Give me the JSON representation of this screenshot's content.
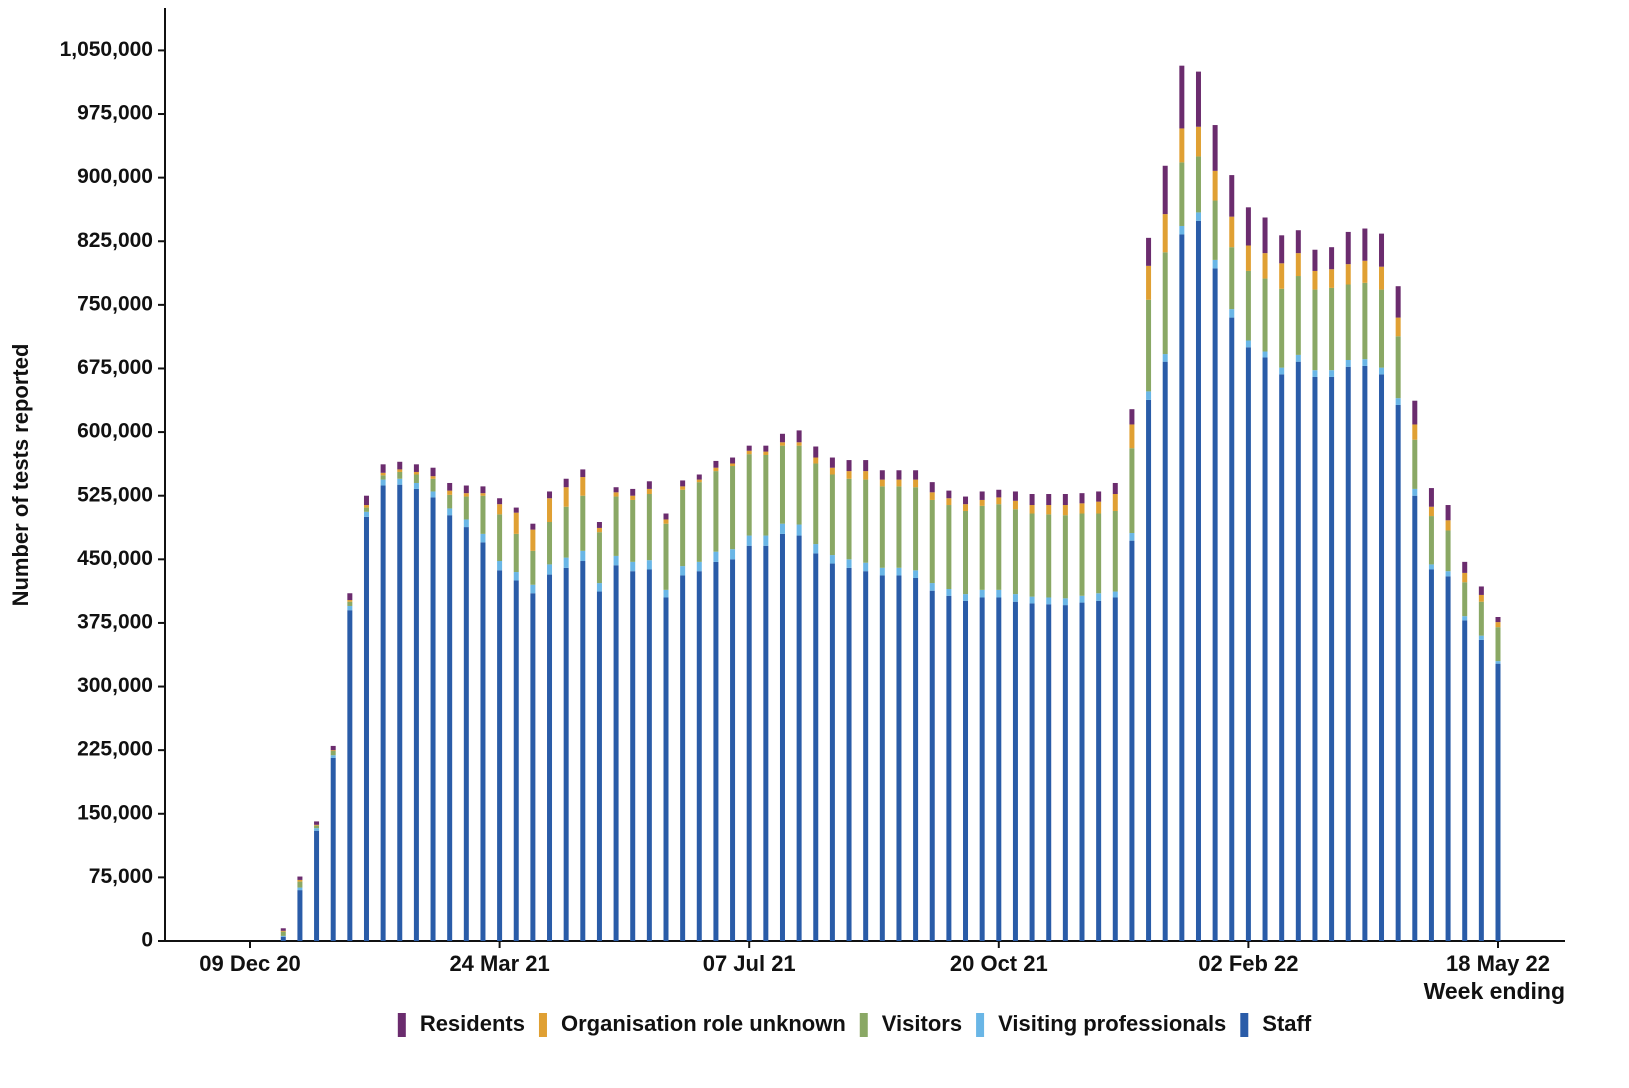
{
  "chart_data": {
    "type": "stacked_bar",
    "y_label": "Number of tests reported",
    "x_label": "Week ending",
    "categories": [
      "09 Dec 20",
      null,
      null,
      null,
      null,
      null,
      null,
      null,
      null,
      null,
      null,
      null,
      null,
      null,
      null,
      "24 Mar 21",
      null,
      null,
      null,
      null,
      null,
      null,
      null,
      null,
      null,
      null,
      null,
      null,
      null,
      null,
      "07 Jul 21",
      null,
      null,
      null,
      null,
      null,
      null,
      null,
      null,
      null,
      null,
      null,
      null,
      null,
      null,
      "20 Oct 21",
      null,
      null,
      null,
      null,
      null,
      null,
      null,
      null,
      null,
      null,
      null,
      null,
      null,
      null,
      "02 Feb 22",
      null,
      null,
      null,
      null,
      null,
      null,
      null,
      null,
      null,
      null,
      null,
      null,
      null,
      null,
      "18 May 22"
    ],
    "ylim": [
      0,
      1100000
    ],
    "yticks": [
      0,
      {
        "value": 75000,
        "label": "75,000"
      },
      {
        "value": 150000,
        "label": "150,000"
      },
      {
        "value": 225000,
        "label": "225,000"
      },
      {
        "value": 300000,
        "label": "300,000"
      },
      {
        "value": 375000,
        "label": "375,000"
      },
      {
        "value": 450000,
        "label": "450,000"
      },
      {
        "value": 525000,
        "label": "525,000"
      },
      {
        "value": 600000,
        "label": "600,000"
      },
      {
        "value": 675000,
        "label": "675,000"
      },
      {
        "value": 750000,
        "label": "750,000"
      },
      {
        "value": 825000,
        "label": "825,000"
      },
      {
        "value": 900000,
        "label": "900,000"
      },
      {
        "value": 975000,
        "label": "975,000"
      },
      {
        "value": 1050000,
        "label": "1,050,000"
      }
    ],
    "series": [
      {
        "name": "Staff",
        "color": "#2a5ca8",
        "values": [
          0,
          0,
          5000,
          60000,
          130000,
          216000,
          390000,
          500000,
          537000,
          538000,
          533000,
          523000,
          502000,
          488000,
          470000,
          437000,
          425000,
          410000,
          432000,
          440000,
          448000,
          412000,
          443000,
          436000,
          438000,
          405000,
          431000,
          436000,
          447000,
          450000,
          466000,
          466000,
          480000,
          478000,
          457000,
          445000,
          440000,
          436000,
          431000,
          431000,
          428000,
          413000,
          407000,
          401000,
          405000,
          405000,
          400000,
          398000,
          397000,
          396000,
          399000,
          401000,
          405000,
          472000,
          638000,
          683000,
          833000,
          849000,
          793000,
          735000,
          700000,
          688000,
          668000,
          683000,
          665000,
          665000,
          677000,
          678000,
          668000,
          632000,
          525000,
          438000,
          430000,
          378000,
          355000,
          327000
        ]
      },
      {
        "name": "Visiting professionals",
        "color": "#6ab6e6",
        "values": [
          0,
          0,
          1000,
          3000,
          3000,
          3000,
          5000,
          6000,
          7000,
          7000,
          7000,
          7000,
          8000,
          9000,
          10000,
          11000,
          10000,
          10000,
          12000,
          12000,
          12000,
          10000,
          11000,
          11000,
          11000,
          9000,
          11000,
          11000,
          12000,
          12000,
          12000,
          12000,
          12000,
          13000,
          11000,
          10000,
          10000,
          10000,
          9000,
          9000,
          9000,
          9000,
          8000,
          8000,
          9000,
          9000,
          9000,
          8000,
          8000,
          8000,
          8000,
          9000,
          7000,
          9000,
          10000,
          9000,
          10000,
          10000,
          10000,
          10000,
          8000,
          7000,
          8000,
          8000,
          8000,
          8000,
          8000,
          8000,
          8000,
          8000,
          8000,
          6000,
          6000,
          5000,
          5000,
          3000
        ]
      },
      {
        "name": "Visitors",
        "color": "#8aa865",
        "values": [
          0,
          0,
          5000,
          7000,
          3000,
          5000,
          5000,
          5000,
          5000,
          8000,
          10000,
          15000,
          16000,
          27000,
          45000,
          55000,
          45000,
          40000,
          50000,
          60000,
          65000,
          60000,
          70000,
          73000,
          78000,
          78000,
          90000,
          94000,
          95000,
          98000,
          96000,
          95000,
          92000,
          93000,
          95000,
          95000,
          95000,
          98000,
          96000,
          96000,
          98000,
          98000,
          99000,
          98000,
          99000,
          101000,
          100000,
          98000,
          98000,
          98000,
          97000,
          94000,
          95000,
          100000,
          108000,
          120000,
          75000,
          66000,
          70000,
          73000,
          82000,
          86000,
          93000,
          93000,
          95000,
          97000,
          89000,
          90000,
          92000,
          73000,
          58000,
          57000,
          48000,
          40000,
          40000,
          40000
        ]
      },
      {
        "name": "Organisation role unknown",
        "color": "#e0a033",
        "values": [
          0,
          0,
          1000,
          2000,
          1000,
          1000,
          2000,
          3000,
          3000,
          3000,
          3000,
          3000,
          5000,
          4000,
          3000,
          12000,
          25000,
          25000,
          28000,
          23000,
          22000,
          5000,
          5000,
          5000,
          6000,
          5000,
          4000,
          3000,
          4000,
          3000,
          4000,
          4000,
          4000,
          4000,
          7000,
          8000,
          9000,
          10000,
          8000,
          8000,
          9000,
          9000,
          8000,
          8000,
          7000,
          8000,
          10000,
          10000,
          11000,
          12000,
          12000,
          14000,
          20000,
          28000,
          40000,
          45000,
          40000,
          35000,
          35000,
          36000,
          30000,
          30000,
          30000,
          27000,
          22000,
          22000,
          24000,
          26000,
          27000,
          22000,
          18000,
          11000,
          12000,
          11000,
          8000,
          6000
        ]
      },
      {
        "name": "Residents",
        "color": "#6b2c6e",
        "values": [
          0,
          0,
          3000,
          4000,
          4000,
          5000,
          8000,
          11000,
          10000,
          9000,
          9000,
          10000,
          9000,
          9000,
          8000,
          7000,
          6000,
          7000,
          8000,
          10000,
          9000,
          7000,
          6000,
          8000,
          9000,
          7000,
          7000,
          6000,
          8000,
          7000,
          6000,
          7000,
          10000,
          14000,
          13000,
          12000,
          13000,
          13000,
          11000,
          11000,
          11000,
          12000,
          9000,
          9000,
          10000,
          9000,
          11000,
          13000,
          13000,
          13000,
          12000,
          12000,
          13000,
          18000,
          33000,
          57000,
          74000,
          65000,
          54000,
          49000,
          45000,
          42000,
          33000,
          27000,
          25000,
          26000,
          38000,
          38000,
          39000,
          37000,
          28000,
          22000,
          18000,
          13000,
          10000,
          6000
        ]
      }
    ]
  }
}
